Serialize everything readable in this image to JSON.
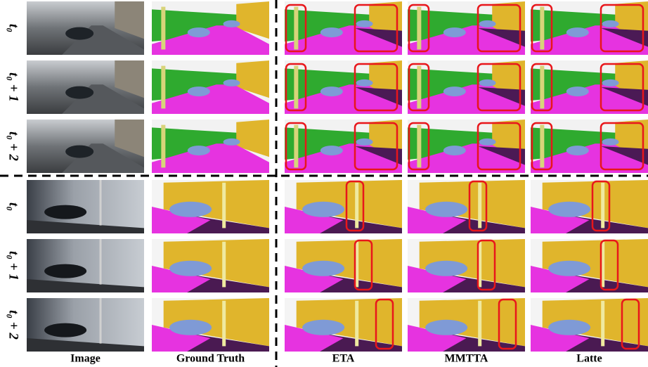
{
  "groups": [
    {
      "row_labels": [
        "t₀",
        "t₀ + 1",
        "t₀ + 2"
      ]
    },
    {
      "row_labels": [
        "t₀",
        "t₀ + 1",
        "t₀ + 2"
      ]
    }
  ],
  "column_labels": [
    "Image",
    "Ground Truth",
    "ETA",
    "MMTTA",
    "Latte"
  ]
}
